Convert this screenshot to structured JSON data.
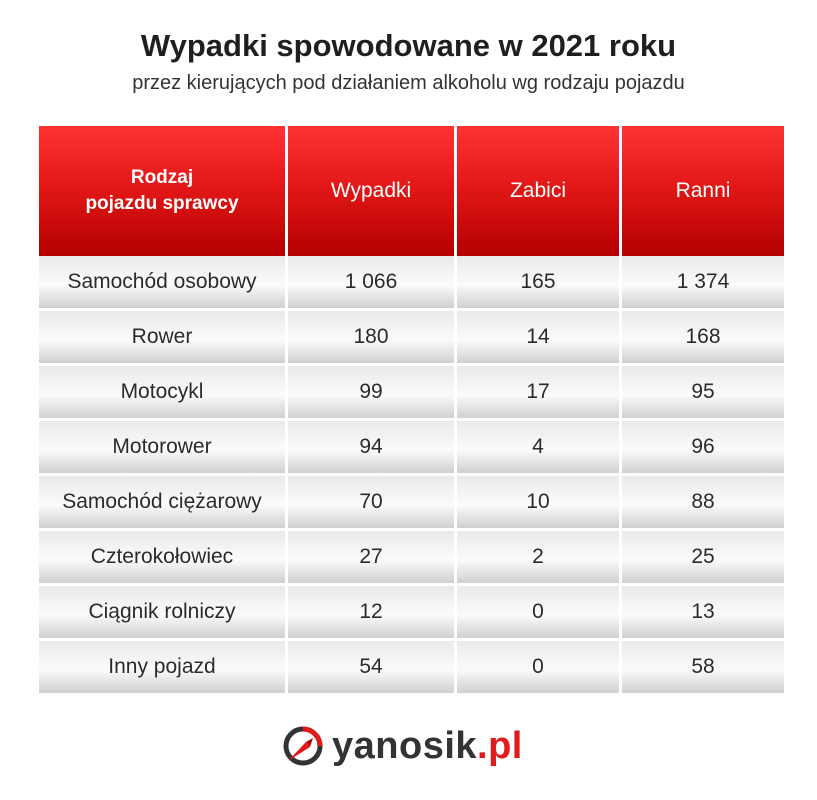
{
  "title": "Wypadki spowodowane w 2021 roku",
  "subtitle": "przez kierujących pod działaniem alkoholu wg rodzaju pojazdu",
  "logo": {
    "name": "yanosik",
    "tld": ".pl"
  },
  "colors": {
    "header_red": "#e41818",
    "row_gray": "#e9e9e9",
    "brand_red": "#e11b1b"
  },
  "chart_data": {
    "type": "table",
    "title": "Wypadki spowodowane w 2021 roku",
    "subtitle": "przez kierujących pod działaniem alkoholu wg rodzaju pojazdu",
    "header_line1": "Rodzaj",
    "header_line2": "pojazdu sprawcy",
    "columns": [
      "Rodzaj pojazdu sprawcy",
      "Wypadki",
      "Zabici",
      "Ranni"
    ],
    "rows": [
      [
        "Samochód osobowy",
        "1 066",
        "165",
        "1 374"
      ],
      [
        "Rower",
        "180",
        "14",
        "168"
      ],
      [
        "Motocykl",
        "99",
        "17",
        "95"
      ],
      [
        "Motorower",
        "94",
        "4",
        "96"
      ],
      [
        "Samochód ciężarowy",
        "70",
        "10",
        "88"
      ],
      [
        "Czterokołowiec",
        "27",
        "2",
        "25"
      ],
      [
        "Ciągnik rolniczy",
        "12",
        "0",
        "13"
      ],
      [
        "Inny pojazd",
        "54",
        "0",
        "58"
      ]
    ]
  }
}
